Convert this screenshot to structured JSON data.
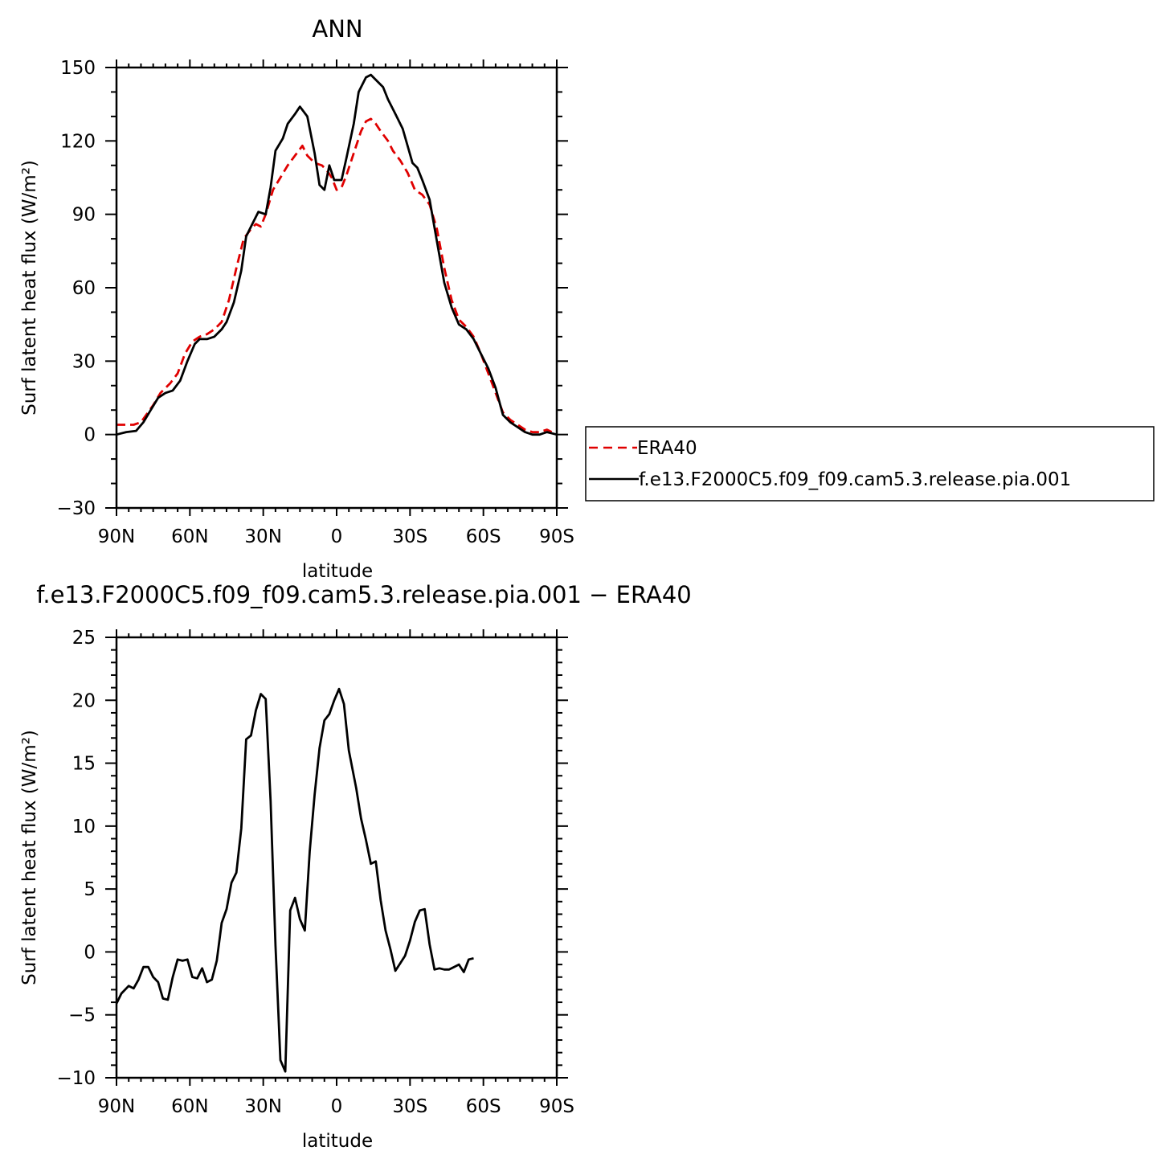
{
  "chart_data": [
    {
      "type": "line",
      "title": "ANN",
      "xlabel": "latitude",
      "ylabel": "Surf latent heat flux (W/m²)",
      "xlim": [
        -90,
        90
      ],
      "ylim": [
        -30,
        150
      ],
      "x_ticks": [
        "90N",
        "60N",
        "30N",
        "0",
        "30S",
        "60S",
        "90S"
      ],
      "y_ticks": [
        "−30",
        "0",
        "30",
        "60",
        "90",
        "120",
        "150"
      ],
      "legend": "outside-right",
      "series": [
        {
          "name": "ERA40",
          "color": "#e00000",
          "style": "dashed",
          "points": [
            [
              -90,
              4
            ],
            [
              -83,
              4
            ],
            [
              -80,
              5
            ],
            [
              -75,
              12
            ],
            [
              -72,
              17
            ],
            [
              -68,
              21
            ],
            [
              -65,
              25
            ],
            [
              -62,
              33
            ],
            [
              -59,
              38
            ],
            [
              -56,
              40
            ],
            [
              -53,
              41
            ],
            [
              -50,
              43
            ],
            [
              -47,
              46
            ],
            [
              -44,
              55
            ],
            [
              -41,
              68
            ],
            [
              -38,
              80
            ],
            [
              -35,
              84
            ],
            [
              -33,
              86
            ],
            [
              -31,
              85
            ],
            [
              -29,
              90
            ],
            [
              -26,
              100
            ],
            [
              -23,
              105
            ],
            [
              -20,
              110
            ],
            [
              -17,
              114
            ],
            [
              -14,
              118
            ],
            [
              -12,
              114
            ],
            [
              -9,
              111
            ],
            [
              -6,
              110
            ],
            [
              -4,
              108
            ],
            [
              -2,
              105
            ],
            [
              0,
              100
            ],
            [
              2,
              101
            ],
            [
              4,
              106
            ],
            [
              7,
              115
            ],
            [
              10,
              124
            ],
            [
              12,
              128
            ],
            [
              14,
              129
            ],
            [
              16,
              127
            ],
            [
              18,
              124
            ],
            [
              21,
              120
            ],
            [
              23,
              116
            ],
            [
              26,
              112
            ],
            [
              29,
              107
            ],
            [
              32,
              100
            ],
            [
              35,
              98
            ],
            [
              38,
              94
            ],
            [
              41,
              84
            ],
            [
              44,
              68
            ],
            [
              47,
              55
            ],
            [
              50,
              47
            ],
            [
              53,
              44
            ],
            [
              56,
              40
            ],
            [
              59,
              33
            ],
            [
              62,
              25
            ],
            [
              65,
              17
            ],
            [
              68,
              9
            ],
            [
              71,
              6
            ],
            [
              74,
              4
            ],
            [
              77,
              2
            ],
            [
              80,
              1
            ],
            [
              83,
              1
            ],
            [
              86,
              2
            ],
            [
              90,
              0
            ]
          ]
        },
        {
          "name": "f.e13.F2000C5.f09_f09.cam5.3.release.pia.001",
          "color": "#000000",
          "style": "solid",
          "points": [
            [
              -90,
              0
            ],
            [
              -86,
              1
            ],
            [
              -82,
              1.5
            ],
            [
              -79,
              5
            ],
            [
              -76,
              10
            ],
            [
              -73,
              15
            ],
            [
              -70,
              17
            ],
            [
              -67,
              18
            ],
            [
              -64,
              22
            ],
            [
              -61,
              30
            ],
            [
              -58,
              37
            ],
            [
              -56,
              39
            ],
            [
              -53,
              39
            ],
            [
              -50,
              40
            ],
            [
              -47,
              43
            ],
            [
              -45,
              46
            ],
            [
              -42,
              54
            ],
            [
              -39,
              67
            ],
            [
              -37,
              81
            ],
            [
              -34,
              87
            ],
            [
              -32,
              91
            ],
            [
              -29,
              90
            ],
            [
              -27,
              101
            ],
            [
              -25,
              116
            ],
            [
              -22,
              121
            ],
            [
              -20,
              127
            ],
            [
              -17,
              131
            ],
            [
              -15,
              134
            ],
            [
              -12,
              130
            ],
            [
              -9,
              115
            ],
            [
              -7,
              102
            ],
            [
              -5,
              100
            ],
            [
              -3,
              110
            ],
            [
              -1,
              104
            ],
            [
              2,
              104
            ],
            [
              4,
              113
            ],
            [
              7,
              127
            ],
            [
              9,
              140
            ],
            [
              12,
              146
            ],
            [
              14,
              147
            ],
            [
              16,
              145
            ],
            [
              19,
              142
            ],
            [
              21,
              137
            ],
            [
              24,
              131
            ],
            [
              27,
              125
            ],
            [
              29,
              118
            ],
            [
              31,
              111
            ],
            [
              33,
              109
            ],
            [
              35,
              104
            ],
            [
              38,
              96
            ],
            [
              41,
              79
            ],
            [
              44,
              62
            ],
            [
              47,
              52
            ],
            [
              50,
              45
            ],
            [
              53,
              43
            ],
            [
              56,
              39
            ],
            [
              59,
              33
            ],
            [
              62,
              27
            ],
            [
              65,
              19
            ],
            [
              68,
              8
            ],
            [
              71,
              5
            ],
            [
              74,
              3
            ],
            [
              77,
              1
            ],
            [
              80,
              0
            ],
            [
              83,
              0
            ],
            [
              86,
              1
            ],
            [
              90,
              0
            ]
          ]
        }
      ]
    },
    {
      "type": "line",
      "title": "f.e13.F2000C5.f09_f09.cam5.3.release.pia.001 − ERA40",
      "xlabel": "latitude",
      "ylabel": "Surf latent heat flux (W/m²)",
      "xlim": [
        -90,
        90
      ],
      "ylim": [
        -10,
        25
      ],
      "x_ticks": [
        "90N",
        "60N",
        "30N",
        "0",
        "30S",
        "60S",
        "90S"
      ],
      "y_ticks": [
        "−10",
        "−5",
        "0",
        "5",
        "10",
        "15",
        "20",
        "25"
      ],
      "series": [
        {
          "color": "#000000",
          "style": "solid",
          "points": [
            [
              -90,
              -4.1
            ],
            [
              -88,
              -3.3
            ],
            [
              -85,
              -2.7
            ],
            [
              -83,
              -2.9
            ],
            [
              -81,
              -2.2
            ],
            [
              -79,
              -1.2
            ],
            [
              -77,
              -1.2
            ],
            [
              -75,
              -2.0
            ],
            [
              -73,
              -2.4
            ],
            [
              -71,
              -3.7
            ],
            [
              -69,
              -3.8
            ],
            [
              -67,
              -2.0
            ],
            [
              -65,
              -0.6
            ],
            [
              -63,
              -0.7
            ],
            [
              -61,
              -0.6
            ],
            [
              -59,
              -2.0
            ],
            [
              -57,
              -2.1
            ],
            [
              -55,
              -1.3
            ],
            [
              -53,
              -2.4
            ],
            [
              -51,
              -2.2
            ],
            [
              -49,
              -0.7
            ],
            [
              -47,
              2.3
            ],
            [
              -45,
              3.4
            ],
            [
              -43,
              5.5
            ],
            [
              -41,
              6.3
            ],
            [
              -39,
              9.8
            ],
            [
              -37,
              16.9
            ],
            [
              -35,
              17.2
            ],
            [
              -33,
              19.2
            ],
            [
              -31,
              20.5
            ],
            [
              -29,
              20.1
            ],
            [
              -27,
              12.0
            ],
            [
              -25,
              0.5
            ],
            [
              -23,
              -8.6
            ],
            [
              -21,
              -9.5
            ],
            [
              -19,
              3.3
            ],
            [
              -17,
              4.3
            ],
            [
              -15,
              2.6
            ],
            [
              -13,
              1.7
            ],
            [
              -11,
              8.0
            ],
            [
              -9,
              12.5
            ],
            [
              -7,
              16.2
            ],
            [
              -5,
              18.4
            ],
            [
              -3,
              18.9
            ],
            [
              -1,
              20.0
            ],
            [
              1,
              20.9
            ],
            [
              3,
              19.7
            ],
            [
              5,
              16.0
            ],
            [
              8,
              13.0
            ],
            [
              10,
              10.6
            ],
            [
              12,
              8.9
            ],
            [
              14,
              7.0
            ],
            [
              16,
              7.2
            ],
            [
              18,
              4.1
            ],
            [
              20,
              1.7
            ],
            [
              22,
              0.2
            ],
            [
              24,
              -1.5
            ],
            [
              26,
              -0.9
            ],
            [
              28,
              -0.3
            ],
            [
              30,
              0.9
            ],
            [
              32,
              2.4
            ],
            [
              34,
              3.3
            ],
            [
              36,
              3.4
            ],
            [
              38,
              0.6
            ],
            [
              40,
              -1.4
            ],
            [
              42,
              -1.3
            ],
            [
              44,
              -1.4
            ],
            [
              46,
              -1.4
            ],
            [
              48,
              -1.2
            ],
            [
              50,
              -1.0
            ],
            [
              52,
              -1.6
            ],
            [
              54,
              -0.6
            ],
            [
              56,
              -0.5
            ]
          ]
        }
      ]
    }
  ]
}
